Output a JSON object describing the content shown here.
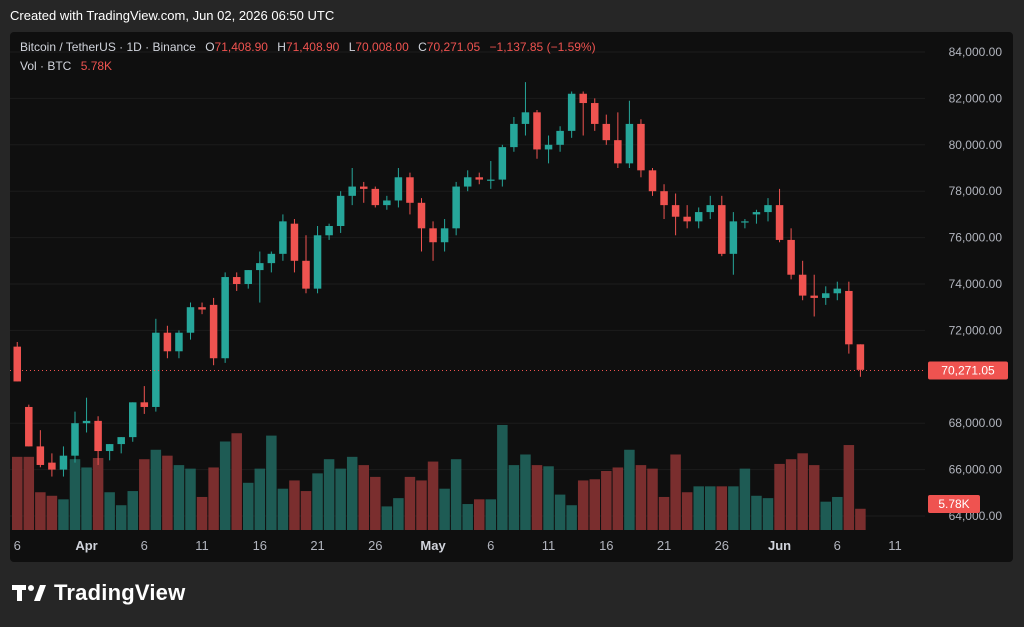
{
  "header": {
    "created": "Created with TradingView.com, Jun 02, 2026 06:50 UTC"
  },
  "legend": {
    "symbol": "Bitcoin / TetherUS · 1D · Binance",
    "o_label": "O",
    "o_value": "71,408.90",
    "h_label": "H",
    "h_value": "71,408.90",
    "l_label": "L",
    "l_value": "70,008.00",
    "c_label": "C",
    "c_value": "70,271.05",
    "change": "−1,137.85 (−1.59%)",
    "vol_label": "Vol · BTC",
    "vol_value": "5.78K"
  },
  "logo": {
    "text": "TradingView"
  },
  "colors": {
    "up": "#26a69a",
    "down": "#ef5350",
    "up_vol": "#1e5b54",
    "down_vol": "#7a2e2e",
    "panel": "#0f0f0f",
    "text": "#b2b5be",
    "grid": "#1c1c1c"
  },
  "chart_data": {
    "type": "candlestick",
    "y_axis": {
      "range": [
        64000,
        84000
      ],
      "ticks": [
        "84,000.00",
        "82,000.00",
        "80,000.00",
        "78,000.00",
        "76,000.00",
        "74,000.00",
        "72,000.00",
        "68,000.00",
        "66,000.00",
        "64,000.00"
      ],
      "tick_values": [
        84000,
        82000,
        80000,
        78000,
        76000,
        74000,
        72000,
        68000,
        66000,
        64000
      ]
    },
    "x_axis": {
      "labels": [
        "6",
        "Apr",
        "6",
        "11",
        "16",
        "21",
        "26",
        "May",
        "6",
        "11",
        "16",
        "21",
        "26",
        "Jun",
        "6",
        "11"
      ],
      "label_index": [
        0,
        6,
        11,
        16,
        21,
        26,
        31,
        36,
        41,
        46,
        51,
        56,
        61,
        66,
        71,
        76
      ],
      "bold": [
        false,
        true,
        false,
        false,
        false,
        false,
        false,
        true,
        false,
        false,
        false,
        false,
        false,
        true,
        false,
        false
      ]
    },
    "last_price": {
      "value": 70271.05,
      "label": "70,271.05"
    },
    "last_volume": {
      "label": "5.78K"
    },
    "volume_max": 100,
    "candles": [
      {
        "o": 71300,
        "h": 71500,
        "l": 69800,
        "c": 69800,
        "v": 62
      },
      {
        "o": 68700,
        "h": 68800,
        "l": 67000,
        "c": 67000,
        "v": 62
      },
      {
        "o": 67000,
        "h": 67700,
        "l": 66100,
        "c": 66200,
        "v": 32
      },
      {
        "o": 66300,
        "h": 66700,
        "l": 65700,
        "c": 66000,
        "v": 29
      },
      {
        "o": 66000,
        "h": 67000,
        "l": 65700,
        "c": 66600,
        "v": 26
      },
      {
        "o": 66600,
        "h": 68500,
        "l": 66300,
        "c": 68000,
        "v": 60
      },
      {
        "o": 68000,
        "h": 69100,
        "l": 67600,
        "c": 68100,
        "v": 53
      },
      {
        "o": 68100,
        "h": 68300,
        "l": 66200,
        "c": 66800,
        "v": 61
      },
      {
        "o": 66800,
        "h": 67100,
        "l": 66400,
        "c": 67100,
        "v": 32
      },
      {
        "o": 67100,
        "h": 67400,
        "l": 66700,
        "c": 67400,
        "v": 21
      },
      {
        "o": 67400,
        "h": 68900,
        "l": 67200,
        "c": 68900,
        "v": 33
      },
      {
        "o": 68900,
        "h": 69600,
        "l": 68400,
        "c": 68700,
        "v": 60
      },
      {
        "o": 68700,
        "h": 72500,
        "l": 68500,
        "c": 71900,
        "v": 68
      },
      {
        "o": 71900,
        "h": 72200,
        "l": 70800,
        "c": 71100,
        "v": 63
      },
      {
        "o": 71100,
        "h": 72000,
        "l": 70800,
        "c": 71900,
        "v": 55
      },
      {
        "o": 71900,
        "h": 73200,
        "l": 71600,
        "c": 73000,
        "v": 52
      },
      {
        "o": 73000,
        "h": 73200,
        "l": 72700,
        "c": 72900,
        "v": 28
      },
      {
        "o": 73100,
        "h": 73400,
        "l": 70500,
        "c": 70800,
        "v": 53
      },
      {
        "o": 70800,
        "h": 74500,
        "l": 70600,
        "c": 74300,
        "v": 75
      },
      {
        "o": 74300,
        "h": 74500,
        "l": 73700,
        "c": 74000,
        "v": 82
      },
      {
        "o": 74000,
        "h": 74600,
        "l": 73800,
        "c": 74600,
        "v": 40
      },
      {
        "o": 74600,
        "h": 75400,
        "l": 73200,
        "c": 74900,
        "v": 52
      },
      {
        "o": 74900,
        "h": 75400,
        "l": 74500,
        "c": 75300,
        "v": 80
      },
      {
        "o": 75300,
        "h": 77000,
        "l": 75000,
        "c": 76700,
        "v": 35
      },
      {
        "o": 76600,
        "h": 76800,
        "l": 74500,
        "c": 75000,
        "v": 42
      },
      {
        "o": 75000,
        "h": 76100,
        "l": 73600,
        "c": 73800,
        "v": 33
      },
      {
        "o": 73800,
        "h": 76500,
        "l": 73600,
        "c": 76100,
        "v": 48
      },
      {
        "o": 76100,
        "h": 76600,
        "l": 75900,
        "c": 76500,
        "v": 60
      },
      {
        "o": 76500,
        "h": 78000,
        "l": 76200,
        "c": 77800,
        "v": 52
      },
      {
        "o": 77800,
        "h": 79000,
        "l": 77400,
        "c": 78200,
        "v": 62
      },
      {
        "o": 78200,
        "h": 78400,
        "l": 77500,
        "c": 78100,
        "v": 55
      },
      {
        "o": 78100,
        "h": 78200,
        "l": 77300,
        "c": 77400,
        "v": 45
      },
      {
        "o": 77400,
        "h": 77800,
        "l": 77200,
        "c": 77600,
        "v": 20
      },
      {
        "o": 77600,
        "h": 79000,
        "l": 77300,
        "c": 78600,
        "v": 27
      },
      {
        "o": 78600,
        "h": 78800,
        "l": 77000,
        "c": 77500,
        "v": 45
      },
      {
        "o": 77500,
        "h": 77700,
        "l": 75400,
        "c": 76400,
        "v": 42
      },
      {
        "o": 76400,
        "h": 76700,
        "l": 75000,
        "c": 75800,
        "v": 58
      },
      {
        "o": 75800,
        "h": 76800,
        "l": 75400,
        "c": 76400,
        "v": 35
      },
      {
        "o": 76400,
        "h": 78400,
        "l": 76100,
        "c": 78200,
        "v": 60
      },
      {
        "o": 78200,
        "h": 78900,
        "l": 78000,
        "c": 78600,
        "v": 22
      },
      {
        "o": 78600,
        "h": 78800,
        "l": 78300,
        "c": 78500,
        "v": 26
      },
      {
        "o": 78500,
        "h": 79300,
        "l": 78100,
        "c": 78500,
        "v": 26
      },
      {
        "o": 78500,
        "h": 80000,
        "l": 78200,
        "c": 79900,
        "v": 89
      },
      {
        "o": 79900,
        "h": 81200,
        "l": 79700,
        "c": 80900,
        "v": 55
      },
      {
        "o": 80900,
        "h": 82700,
        "l": 80400,
        "c": 81400,
        "v": 64
      },
      {
        "o": 81400,
        "h": 81500,
        "l": 79400,
        "c": 79800,
        "v": 55
      },
      {
        "o": 79800,
        "h": 80400,
        "l": 79200,
        "c": 80000,
        "v": 54
      },
      {
        "o": 80000,
        "h": 80800,
        "l": 79700,
        "c": 80600,
        "v": 30
      },
      {
        "o": 80600,
        "h": 82300,
        "l": 80300,
        "c": 82200,
        "v": 21
      },
      {
        "o": 82200,
        "h": 82300,
        "l": 80400,
        "c": 81800,
        "v": 42
      },
      {
        "o": 81800,
        "h": 82000,
        "l": 80600,
        "c": 80900,
        "v": 43
      },
      {
        "o": 80900,
        "h": 81300,
        "l": 80000,
        "c": 80200,
        "v": 50
      },
      {
        "o": 80200,
        "h": 81400,
        "l": 79000,
        "c": 79200,
        "v": 53
      },
      {
        "o": 79200,
        "h": 81900,
        "l": 79000,
        "c": 80900,
        "v": 68
      },
      {
        "o": 80900,
        "h": 81100,
        "l": 78600,
        "c": 78900,
        "v": 55
      },
      {
        "o": 78900,
        "h": 79000,
        "l": 77800,
        "c": 78000,
        "v": 52
      },
      {
        "o": 78000,
        "h": 78300,
        "l": 76800,
        "c": 77400,
        "v": 28
      },
      {
        "o": 77400,
        "h": 77900,
        "l": 76100,
        "c": 76900,
        "v": 64
      },
      {
        "o": 76900,
        "h": 77400,
        "l": 76400,
        "c": 76700,
        "v": 32
      },
      {
        "o": 76700,
        "h": 77300,
        "l": 76400,
        "c": 77100,
        "v": 37
      },
      {
        "o": 77100,
        "h": 77800,
        "l": 76800,
        "c": 77400,
        "v": 37
      },
      {
        "o": 77400,
        "h": 77800,
        "l": 75200,
        "c": 75300,
        "v": 37
      },
      {
        "o": 75300,
        "h": 77100,
        "l": 74400,
        "c": 76700,
        "v": 37
      },
      {
        "o": 76700,
        "h": 76800,
        "l": 76400,
        "c": 76700,
        "v": 52
      },
      {
        "o": 77000,
        "h": 77200,
        "l": 76600,
        "c": 77100,
        "v": 29
      },
      {
        "o": 77100,
        "h": 77700,
        "l": 76700,
        "c": 77400,
        "v": 27
      },
      {
        "o": 77400,
        "h": 78100,
        "l": 75800,
        "c": 75900,
        "v": 56
      },
      {
        "o": 75900,
        "h": 76400,
        "l": 74200,
        "c": 74400,
        "v": 60
      },
      {
        "o": 74400,
        "h": 75000,
        "l": 73300,
        "c": 73500,
        "v": 65
      },
      {
        "o": 73500,
        "h": 74400,
        "l": 72600,
        "c": 73400,
        "v": 55
      },
      {
        "o": 73400,
        "h": 73900,
        "l": 73100,
        "c": 73600,
        "v": 24
      },
      {
        "o": 73600,
        "h": 74100,
        "l": 73300,
        "c": 73800,
        "v": 28
      },
      {
        "o": 73700,
        "h": 74100,
        "l": 71000,
        "c": 71400,
        "v": 72
      },
      {
        "o": 71400,
        "h": 71400,
        "l": 70000,
        "c": 70300,
        "v": 18
      }
    ]
  }
}
